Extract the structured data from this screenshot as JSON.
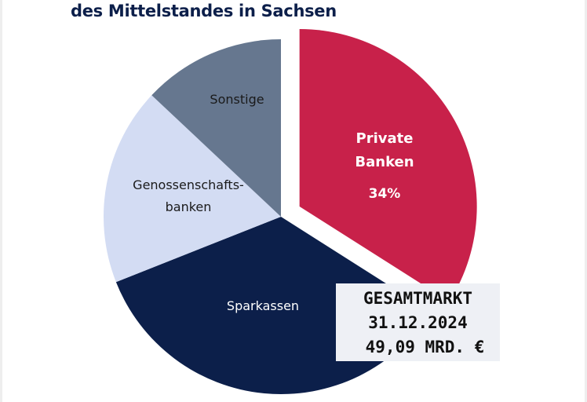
{
  "chart_data": {
    "type": "pie",
    "title": "des Mittelstandes in Sachsen",
    "start": "top",
    "direction": "clockwise",
    "slices": [
      {
        "label": "Private Banken",
        "lines": [
          "Private",
          "Banken"
        ],
        "value": 34,
        "value_label": "34%",
        "color": "#c8214a",
        "exploded": true
      },
      {
        "label": "Sparkassen",
        "lines": [
          "Sparkassen"
        ],
        "value": 35,
        "color": "#0c1f4a"
      },
      {
        "label": "Genossenschaftsbanken",
        "lines": [
          "Genossenschafts-",
          "banken"
        ],
        "value": 18,
        "color": "#d3dcf3"
      },
      {
        "label": "Sonstige",
        "lines": [
          "Sonstige"
        ],
        "value": 13,
        "color": "#66778f"
      }
    ],
    "annotation": [
      "GESAMTMARKT",
      "31.12.2024",
      "49,09 MRD. €"
    ]
  }
}
